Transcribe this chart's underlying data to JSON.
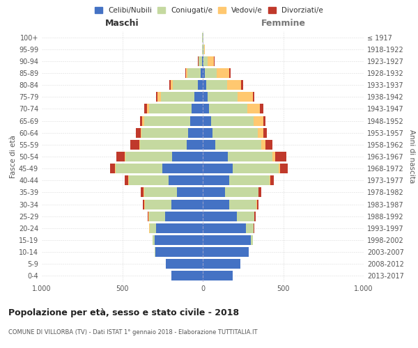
{
  "age_groups": [
    "0-4",
    "5-9",
    "10-14",
    "15-19",
    "20-24",
    "25-29",
    "30-34",
    "35-39",
    "40-44",
    "45-49",
    "50-54",
    "55-59",
    "60-64",
    "65-69",
    "70-74",
    "75-79",
    "80-84",
    "85-89",
    "90-94",
    "95-99",
    "100+"
  ],
  "birth_years": [
    "2013-2017",
    "2008-2012",
    "2003-2007",
    "1998-2002",
    "1993-1997",
    "1988-1992",
    "1983-1987",
    "1978-1982",
    "1973-1977",
    "1968-1972",
    "1963-1967",
    "1958-1962",
    "1953-1957",
    "1948-1952",
    "1943-1947",
    "1938-1942",
    "1933-1937",
    "1928-1932",
    "1923-1927",
    "1918-1922",
    "≤ 1917"
  ],
  "male": {
    "celibi": [
      195,
      230,
      295,
      300,
      290,
      235,
      195,
      160,
      210,
      250,
      190,
      100,
      90,
      80,
      70,
      50,
      30,
      15,
      5,
      2,
      2
    ],
    "coniugati": [
      0,
      0,
      2,
      10,
      40,
      100,
      165,
      205,
      250,
      290,
      290,
      290,
      290,
      285,
      265,
      210,
      155,
      80,
      20,
      3,
      2
    ],
    "vedovi": [
      0,
      0,
      0,
      0,
      2,
      2,
      2,
      2,
      3,
      5,
      5,
      5,
      5,
      10,
      10,
      20,
      15,
      10,
      3,
      0,
      0
    ],
    "divorziati": [
      0,
      0,
      0,
      0,
      2,
      5,
      10,
      20,
      20,
      30,
      50,
      55,
      30,
      15,
      20,
      10,
      8,
      5,
      2,
      0,
      0
    ]
  },
  "female": {
    "nubili": [
      185,
      235,
      285,
      300,
      270,
      210,
      165,
      140,
      165,
      185,
      155,
      80,
      60,
      50,
      40,
      30,
      20,
      15,
      5,
      2,
      2
    ],
    "coniugate": [
      0,
      0,
      2,
      10,
      45,
      110,
      170,
      205,
      250,
      285,
      280,
      285,
      280,
      265,
      235,
      185,
      130,
      70,
      25,
      5,
      2
    ],
    "vedove": [
      0,
      0,
      0,
      0,
      2,
      2,
      2,
      3,
      5,
      10,
      15,
      25,
      35,
      60,
      80,
      95,
      90,
      80,
      40,
      5,
      2
    ],
    "divorziate": [
      0,
      0,
      0,
      0,
      2,
      5,
      10,
      15,
      20,
      50,
      70,
      45,
      25,
      15,
      20,
      10,
      10,
      8,
      2,
      0,
      0
    ]
  },
  "colors": {
    "celibi": "#4472C4",
    "coniugati": "#c5d9a0",
    "vedovi": "#ffc870",
    "divorziati": "#c0392b"
  },
  "title": "Popolazione per età, sesso e stato civile - 2018",
  "subtitle": "COMUNE DI VILLORBA (TV) - Dati ISTAT 1° gennaio 2018 - Elaborazione TUTTITALIA.IT",
  "ylabel_left": "Fasce di età",
  "ylabel_right": "Anni di nascita",
  "xlabel_left": "Maschi",
  "xlabel_right": "Femmine",
  "xlim": 1000,
  "legend_labels": [
    "Celibi/Nubili",
    "Coniugati/e",
    "Vedovi/e",
    "Divorziati/e"
  ],
  "bg_color": "#ffffff",
  "grid_color": "#cccccc"
}
